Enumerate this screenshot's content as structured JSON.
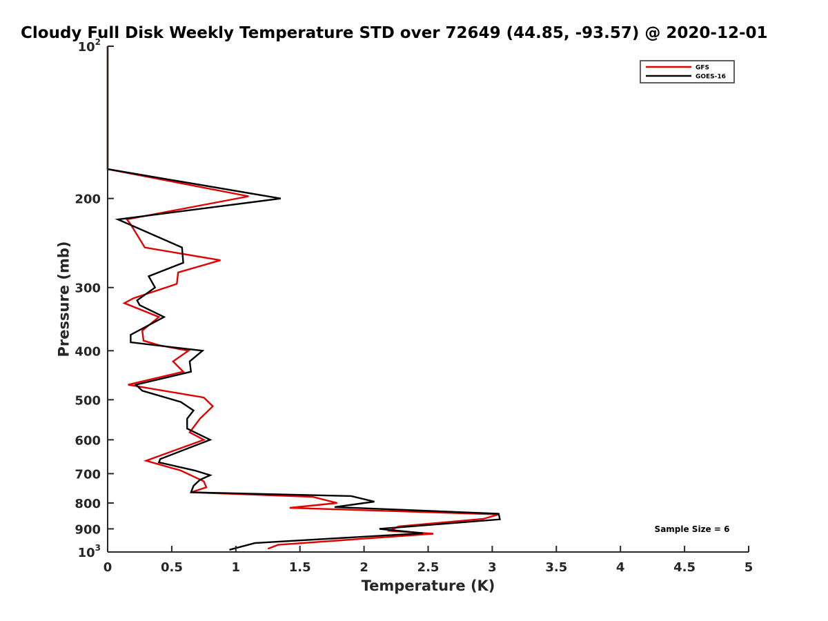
{
  "chart_data": {
    "type": "line",
    "title": "Cloudy Full Disk Weekly Temperature STD over 72649 (44.85, -93.57) @ 2020-12-01",
    "xlabel": "Temperature (K)",
    "ylabel": "Pressure (mb)",
    "xlim": [
      0,
      5
    ],
    "ylim": [
      100,
      1000
    ],
    "y_scale": "log",
    "y_reversed": true,
    "grid": false,
    "legend_position": "top-right",
    "x_ticks": [
      {
        "value": 0,
        "label": "0"
      },
      {
        "value": 0.5,
        "label": "0.5"
      },
      {
        "value": 1,
        "label": "1"
      },
      {
        "value": 1.5,
        "label": "1.5"
      },
      {
        "value": 2,
        "label": "2"
      },
      {
        "value": 2.5,
        "label": "2.5"
      },
      {
        "value": 3,
        "label": "3"
      },
      {
        "value": 3.5,
        "label": "3.5"
      },
      {
        "value": 4,
        "label": "4"
      },
      {
        "value": 4.5,
        "label": "4.5"
      },
      {
        "value": 5,
        "label": "5"
      }
    ],
    "y_ticks": [
      {
        "value": 100,
        "base": "10",
        "exp": "2"
      },
      {
        "value": 200,
        "label": "200"
      },
      {
        "value": 300,
        "label": "300"
      },
      {
        "value": 400,
        "label": "400"
      },
      {
        "value": 500,
        "label": "500"
      },
      {
        "value": 600,
        "label": "600"
      },
      {
        "value": 700,
        "label": "700"
      },
      {
        "value": 800,
        "label": "800"
      },
      {
        "value": 900,
        "label": "900"
      },
      {
        "value": 1000,
        "base": "10",
        "exp": "3"
      }
    ],
    "annotation": "Sample Size = 6",
    "series": [
      {
        "name": "GFS",
        "color": "#e00000",
        "points": [
          [
            0.0,
            100
          ],
          [
            0.0,
            150
          ],
          [
            0.0,
            175
          ],
          [
            1.1,
            198
          ],
          [
            0.15,
            220
          ],
          [
            0.18,
            225
          ],
          [
            0.29,
            250
          ],
          [
            0.88,
            265
          ],
          [
            0.55,
            280
          ],
          [
            0.54,
            295
          ],
          [
            0.2,
            315
          ],
          [
            0.13,
            322
          ],
          [
            0.4,
            343
          ],
          [
            0.27,
            365
          ],
          [
            0.28,
            382
          ],
          [
            0.4,
            390
          ],
          [
            0.63,
            400
          ],
          [
            0.51,
            420
          ],
          [
            0.59,
            440
          ],
          [
            0.16,
            467
          ],
          [
            0.75,
            495
          ],
          [
            0.82,
            515
          ],
          [
            0.72,
            545
          ],
          [
            0.64,
            580
          ],
          [
            0.75,
            600
          ],
          [
            0.3,
            660
          ],
          [
            0.57,
            690
          ],
          [
            0.75,
            725
          ],
          [
            0.77,
            745
          ],
          [
            0.65,
            762
          ],
          [
            1.6,
            778
          ],
          [
            1.79,
            800
          ],
          [
            1.42,
            818
          ],
          [
            3.05,
            843
          ],
          [
            2.93,
            860
          ],
          [
            2.27,
            890
          ],
          [
            2.2,
            908
          ],
          [
            2.54,
            920
          ],
          [
            1.33,
            968
          ],
          [
            1.25,
            985
          ]
        ]
      },
      {
        "name": "GOES-16",
        "color": "#000000",
        "points": [
          [
            0.0,
            100
          ],
          [
            0.0,
            150
          ],
          [
            0.0,
            175
          ],
          [
            1.35,
            200
          ],
          [
            0.08,
            220
          ],
          [
            0.58,
            250
          ],
          [
            0.59,
            268
          ],
          [
            0.32,
            285
          ],
          [
            0.37,
            300
          ],
          [
            0.23,
            318
          ],
          [
            0.25,
            325
          ],
          [
            0.44,
            343
          ],
          [
            0.18,
            372
          ],
          [
            0.18,
            385
          ],
          [
            0.74,
            400
          ],
          [
            0.64,
            420
          ],
          [
            0.65,
            440
          ],
          [
            0.22,
            467
          ],
          [
            0.27,
            480
          ],
          [
            0.57,
            505
          ],
          [
            0.67,
            525
          ],
          [
            0.62,
            545
          ],
          [
            0.62,
            570
          ],
          [
            0.8,
            600
          ],
          [
            0.41,
            655
          ],
          [
            0.4,
            665
          ],
          [
            0.68,
            690
          ],
          [
            0.8,
            705
          ],
          [
            0.72,
            720
          ],
          [
            0.67,
            740
          ],
          [
            0.65,
            762
          ],
          [
            1.9,
            775
          ],
          [
            2.08,
            795
          ],
          [
            1.77,
            815
          ],
          [
            3.05,
            840
          ],
          [
            3.06,
            862
          ],
          [
            2.12,
            900
          ],
          [
            2.46,
            918
          ],
          [
            1.15,
            960
          ],
          [
            0.95,
            990
          ]
        ]
      }
    ]
  }
}
